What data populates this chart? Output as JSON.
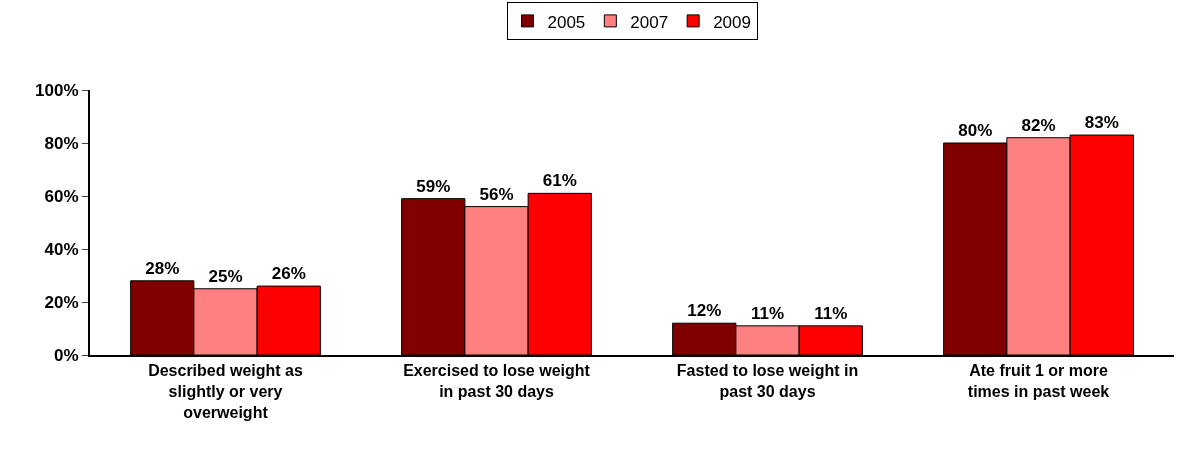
{
  "chart_data": {
    "type": "bar",
    "categories": [
      "Described weight as slightly or very overweight",
      "Exercised to lose weight in past 30 days",
      "Fasted to lose weight in past 30 days",
      "Ate fruit 1 or more times in past week"
    ],
    "series": [
      {
        "name": "2005",
        "color": "#800000",
        "values": [
          28,
          59,
          12,
          80
        ],
        "value_labels": [
          "28%",
          "59%",
          "12%",
          "80%"
        ]
      },
      {
        "name": "2007",
        "color": "#ff8080",
        "values": [
          25,
          56,
          11,
          82
        ],
        "value_labels": [
          "25%",
          "56%",
          "11%",
          "82%"
        ]
      },
      {
        "name": "2009",
        "color": "#ff0000",
        "values": [
          26,
          61,
          11,
          83
        ],
        "value_labels": [
          "26%",
          "61%",
          "11%",
          "83%"
        ]
      }
    ],
    "ylim": [
      0,
      100
    ],
    "yticks": [
      {
        "value": 0,
        "label": "0%"
      },
      {
        "value": 20,
        "label": "20%"
      },
      {
        "value": 40,
        "label": "40%"
      },
      {
        "value": 60,
        "label": "60%"
      },
      {
        "value": 80,
        "label": "80%"
      },
      {
        "value": 100,
        "label": "100%"
      }
    ],
    "legend": "top"
  }
}
